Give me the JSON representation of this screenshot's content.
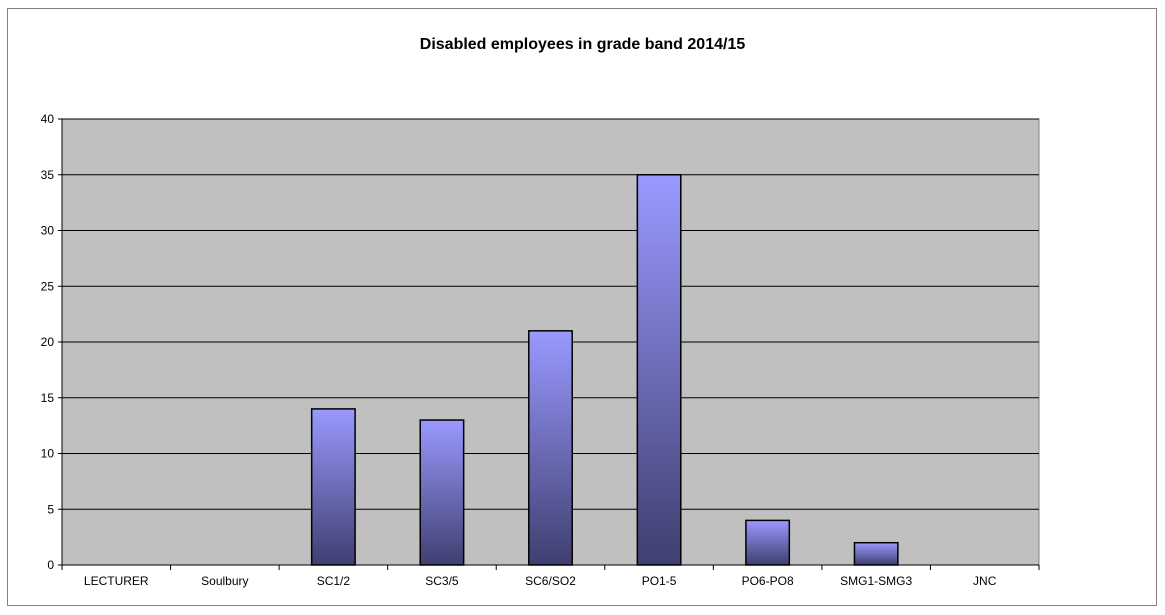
{
  "chart_data": {
    "type": "bar",
    "title": "Disabled employees in grade band 2014/15",
    "xlabel": "",
    "ylabel": "",
    "categories": [
      "LECTURER",
      "Soulbury",
      "SC1/2",
      "SC3/5",
      "SC6/SO2",
      "PO1-5",
      "PO6-PO8",
      "SMG1-SMG3",
      "JNC"
    ],
    "values": [
      0,
      0,
      14,
      13,
      21,
      35,
      4,
      2,
      0
    ],
    "ylim": [
      0,
      40
    ],
    "yticks": [
      0,
      5,
      10,
      15,
      20,
      25,
      30,
      35,
      40
    ],
    "grid": true,
    "legend": "none",
    "colors": {
      "plot_background": "#c0c0c0",
      "bar_top": "#9999ff",
      "bar_bottom": "#3f3f70",
      "gridline": "#000000"
    }
  }
}
